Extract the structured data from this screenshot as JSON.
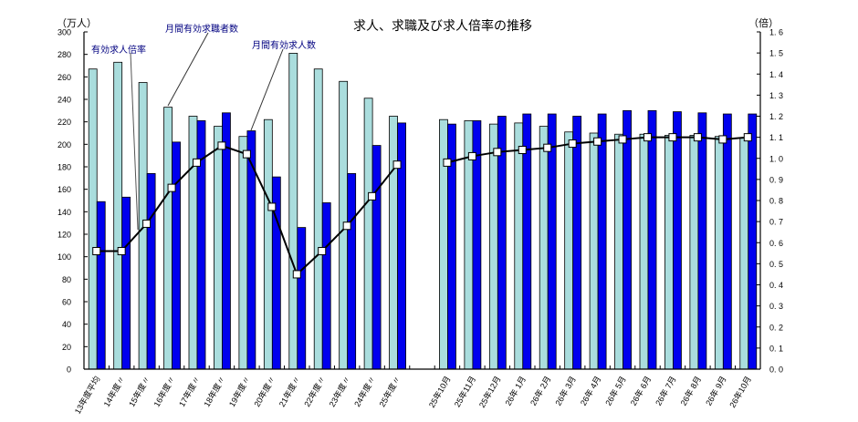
{
  "chart_data": {
    "type": "bar",
    "title": "求人、求職及び求人倍率の推移",
    "ylabel": "（万人）",
    "y2label": "（倍）",
    "ylim": [
      0,
      300
    ],
    "y2lim": [
      0,
      1.6
    ],
    "yticks": [
      0,
      20,
      40,
      60,
      80,
      100,
      120,
      140,
      160,
      180,
      200,
      220,
      240,
      260,
      280,
      300
    ],
    "y2ticks": [
      "0.0",
      "0.1",
      "0.2",
      "0.3",
      "0.4",
      "0.5",
      "0.6",
      "0.7",
      "0.8",
      "0.9",
      "1.0",
      "1.1",
      "1.2",
      "1.3",
      "1.4",
      "1.5",
      "1.6"
    ],
    "grid": false,
    "categories": [
      "13年度平均",
      "14年度〃",
      "15年度〃",
      "16年度〃",
      "17年度〃",
      "18年度〃",
      "19年度〃",
      "20年度〃",
      "21年度〃",
      "22年度〃",
      "23年度〃",
      "24年度〃",
      "25年度〃",
      "",
      "25年10月",
      "25年11月",
      "25年12月",
      "26年 1月",
      "26年 2月",
      "26年 3月",
      "26年 4月",
      "26年 5月",
      "26年 6月",
      "26年 7月",
      "26年 8月",
      "26年 9月",
      "26年10月"
    ],
    "series": [
      {
        "name": "月間有効求職者数",
        "type": "bar",
        "axis": "left",
        "color": "#aadddd",
        "values": [
          267,
          273,
          255,
          233,
          225,
          216,
          207,
          222,
          281,
          267,
          256,
          241,
          225,
          null,
          222,
          221,
          218,
          219,
          216,
          211,
          210,
          209,
          209,
          208,
          208,
          207,
          206
        ]
      },
      {
        "name": "月間有効求人数",
        "type": "bar",
        "axis": "left",
        "color": "#0000ee",
        "values": [
          149,
          153,
          174,
          202,
          221,
          228,
          212,
          171,
          126,
          148,
          174,
          199,
          219,
          null,
          218,
          221,
          225,
          227,
          227,
          225,
          227,
          230,
          230,
          229,
          228,
          227,
          227
        ]
      },
      {
        "name": "有効求人倍率",
        "type": "line",
        "axis": "right",
        "color": "#000000",
        "values": [
          0.56,
          0.56,
          0.69,
          0.86,
          0.98,
          1.06,
          1.02,
          0.77,
          0.45,
          0.56,
          0.68,
          0.82,
          0.97,
          null,
          0.98,
          1.01,
          1.03,
          1.04,
          1.05,
          1.07,
          1.08,
          1.09,
          1.1,
          1.1,
          1.1,
          1.09,
          1.1
        ]
      }
    ],
    "annotations": [
      {
        "text": "有効求人倍率",
        "target_series": 2
      },
      {
        "text": "月間有効求職者数",
        "target_series": 0
      },
      {
        "text": "月間有効求人数",
        "target_series": 1
      }
    ]
  },
  "labels": {
    "title": "求人、求職及び求人倍率の推移",
    "left_unit": "（万人）",
    "right_unit": "（倍）",
    "callout_ratio": "有効求人倍率",
    "callout_seekers": "月間有効求職者数",
    "callout_openings": "月間有効求人数"
  }
}
